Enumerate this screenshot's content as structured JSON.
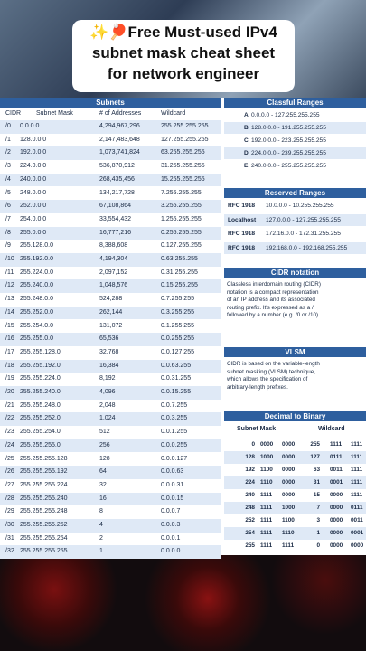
{
  "caption": {
    "line1": "✨🏓Free Must-used IPv4",
    "line2": "subnet mask cheat sheet",
    "line3": "for network engineer"
  },
  "subnets": {
    "title": "Subnets",
    "headers": [
      "CIDR",
      "Subnet Mask",
      "# of Addresses",
      "Wildcard"
    ],
    "rows": [
      [
        "/0",
        "0.0.0.0",
        "4,294,967,296",
        "255.255.255.255"
      ],
      [
        "/1",
        "128.0.0.0",
        "2,147,483,648",
        "127.255.255.255"
      ],
      [
        "/2",
        "192.0.0.0",
        "1,073,741,824",
        "63.255.255.255"
      ],
      [
        "/3",
        "224.0.0.0",
        "536,870,912",
        "31.255.255.255"
      ],
      [
        "/4",
        "240.0.0.0",
        "268,435,456",
        "15.255.255.255"
      ],
      [
        "/5",
        "248.0.0.0",
        "134,217,728",
        "7.255.255.255"
      ],
      [
        "/6",
        "252.0.0.0",
        "67,108,864",
        "3.255.255.255"
      ],
      [
        "/7",
        "254.0.0.0",
        "33,554,432",
        "1.255.255.255"
      ],
      [
        "/8",
        "255.0.0.0",
        "16,777,216",
        "0.255.255.255"
      ],
      [
        "/9",
        "255.128.0.0",
        "8,388,608",
        "0.127.255.255"
      ],
      [
        "/10",
        "255.192.0.0",
        "4,194,304",
        "0.63.255.255"
      ],
      [
        "/11",
        "255.224.0.0",
        "2,097,152",
        "0.31.255.255"
      ],
      [
        "/12",
        "255.240.0.0",
        "1,048,576",
        "0.15.255.255"
      ],
      [
        "/13",
        "255.248.0.0",
        "524,288",
        "0.7.255.255"
      ],
      [
        "/14",
        "255.252.0.0",
        "262,144",
        "0.3.255.255"
      ],
      [
        "/15",
        "255.254.0.0",
        "131,072",
        "0.1.255.255"
      ],
      [
        "/16",
        "255.255.0.0",
        "65,536",
        "0.0.255.255"
      ],
      [
        "/17",
        "255.255.128.0",
        "32,768",
        "0.0.127.255"
      ],
      [
        "/18",
        "255.255.192.0",
        "16,384",
        "0.0.63.255"
      ],
      [
        "/19",
        "255.255.224.0",
        "8,192",
        "0.0.31.255"
      ],
      [
        "/20",
        "255.255.240.0",
        "4,096",
        "0.0.15.255"
      ],
      [
        "/21",
        "255.255.248.0",
        "2,048",
        "0.0.7.255"
      ],
      [
        "/22",
        "255.255.252.0",
        "1,024",
        "0.0.3.255"
      ],
      [
        "/23",
        "255.255.254.0",
        "512",
        "0.0.1.255"
      ],
      [
        "/24",
        "255.255.255.0",
        "256",
        "0.0.0.255"
      ],
      [
        "/25",
        "255.255.255.128",
        "128",
        "0.0.0.127"
      ],
      [
        "/26",
        "255.255.255.192",
        "64",
        "0.0.0.63"
      ],
      [
        "/27",
        "255.255.255.224",
        "32",
        "0.0.0.31"
      ],
      [
        "/28",
        "255.255.255.240",
        "16",
        "0.0.0.15"
      ],
      [
        "/29",
        "255.255.255.248",
        "8",
        "0.0.0.7"
      ],
      [
        "/30",
        "255.255.255.252",
        "4",
        "0.0.0.3"
      ],
      [
        "/31",
        "255.255.255.254",
        "2",
        "0.0.0.1"
      ],
      [
        "/32",
        "255.255.255.255",
        "1",
        "0.0.0.0"
      ]
    ]
  },
  "classful": {
    "title": "Classful Ranges",
    "rows": [
      [
        "A",
        "0.0.0.0 - 127.255.255.255"
      ],
      [
        "B",
        "128.0.0.0 - 191.255.255.255"
      ],
      [
        "C",
        "192.0.0.0 - 223.255.255.255"
      ],
      [
        "D",
        "224.0.0.0 - 239.255.255.255"
      ],
      [
        "E",
        "240.0.0.0 - 255.255.255.255"
      ]
    ]
  },
  "reserved": {
    "title": "Reserved Ranges",
    "rows": [
      [
        "RFC 1918",
        "10.0.0.0 - 10.255.255.255"
      ],
      [
        "Localhost",
        "127.0.0.0 - 127.255.255.255"
      ],
      [
        "RFC 1918",
        "172.16.0.0 - 172.31.255.255"
      ],
      [
        "RFC 1918",
        "192.168.0.0 - 192.168.255.255"
      ]
    ]
  },
  "cidr_notation": {
    "title": "CIDR notation",
    "lines": [
      "Classless interdomain routing (CIDR)",
      "notation is a compact representation",
      "of an IP address and its associated",
      "routing prefix. It's expressed as a /",
      "followed by a number (e.g. /0 or /10)."
    ]
  },
  "vlsm": {
    "title": "VLSM",
    "lines": [
      "CIDR is based on the variable-length",
      "subnet masking (VLSM) technique,",
      "which allows the specification of",
      "arbitrary-length prefixes."
    ]
  },
  "dec2bin": {
    "title": "Decimal to Binary",
    "headers": [
      "Subnet Mask",
      "Wildcard"
    ],
    "rows": [
      [
        "0",
        "0000",
        "0000",
        "255",
        "1111",
        "1111"
      ],
      [
        "128",
        "1000",
        "0000",
        "127",
        "0111",
        "1111"
      ],
      [
        "192",
        "1100",
        "0000",
        "63",
        "0011",
        "1111"
      ],
      [
        "224",
        "1110",
        "0000",
        "31",
        "0001",
        "1111"
      ],
      [
        "240",
        "1111",
        "0000",
        "15",
        "0000",
        "1111"
      ],
      [
        "248",
        "1111",
        "1000",
        "7",
        "0000",
        "0111"
      ],
      [
        "252",
        "1111",
        "1100",
        "3",
        "0000",
        "0011"
      ],
      [
        "254",
        "1111",
        "1110",
        "1",
        "0000",
        "0001"
      ],
      [
        "255",
        "1111",
        "1111",
        "0",
        "0000",
        "0000"
      ]
    ]
  },
  "colors": {
    "header_blue": "#2e5f9e",
    "row_alt": "#dfe9f6",
    "text": "#1a2a44"
  }
}
